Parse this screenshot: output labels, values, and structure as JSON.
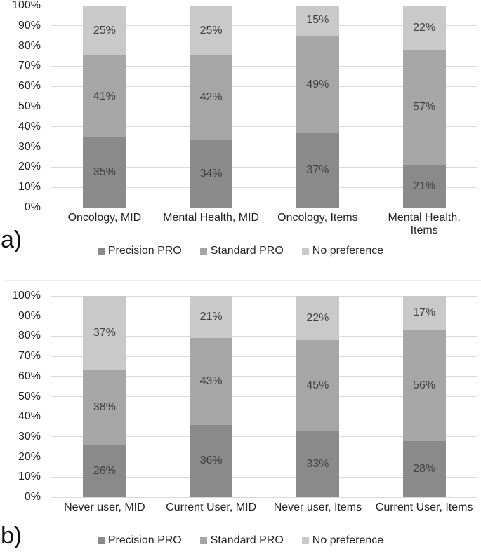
{
  "colors": {
    "precision_pro": "#8a8a8a",
    "standard_pro": "#a6a6a6",
    "no_preference": "#c9c9c9",
    "gridline": "#d9d9d9",
    "value_label": "#404040",
    "axis_text": "#222222"
  },
  "chart_data": [
    {
      "type": "bar",
      "subtype": "stacked-100-percent",
      "panel_label": "a)",
      "title": "",
      "xlabel": "",
      "ylabel": "",
      "ylim": [
        0,
        100
      ],
      "grid": true,
      "legend_position": "bottom",
      "y_ticks": [
        "100%",
        "90%",
        "80%",
        "70%",
        "60%",
        "50%",
        "40%",
        "30%",
        "20%",
        "10%",
        "0%"
      ],
      "categories": [
        "Oncology, MID",
        "Mental Health, MID",
        "Oncology, Items",
        "Mental Health, Items"
      ],
      "series": [
        {
          "name": "Precision PRO",
          "color": "#8a8a8a",
          "values": [
            35,
            34,
            37,
            21
          ]
        },
        {
          "name": "Standard PRO",
          "color": "#a6a6a6",
          "values": [
            41,
            42,
            49,
            57
          ]
        },
        {
          "name": "No preference",
          "color": "#c9c9c9",
          "values": [
            25,
            25,
            15,
            22
          ]
        }
      ],
      "value_label_suffix": "%"
    },
    {
      "type": "bar",
      "subtype": "stacked-100-percent",
      "panel_label": "b)",
      "title": "",
      "xlabel": "",
      "ylabel": "",
      "ylim": [
        0,
        100
      ],
      "grid": true,
      "legend_position": "bottom",
      "y_ticks": [
        "100%",
        "90%",
        "80%",
        "70%",
        "60%",
        "50%",
        "40%",
        "30%",
        "20%",
        "10%",
        "0%"
      ],
      "categories": [
        "Never user, MID",
        "Current User, MID",
        "Never user, Items",
        "Current User, Items"
      ],
      "series": [
        {
          "name": "Precision PRO",
          "color": "#8a8a8a",
          "values": [
            26,
            36,
            33,
            28
          ]
        },
        {
          "name": "Standard PRO",
          "color": "#a6a6a6",
          "values": [
            38,
            43,
            45,
            56
          ]
        },
        {
          "name": "No preference",
          "color": "#c9c9c9",
          "values": [
            37,
            21,
            22,
            17
          ]
        }
      ],
      "value_label_suffix": "%"
    }
  ]
}
